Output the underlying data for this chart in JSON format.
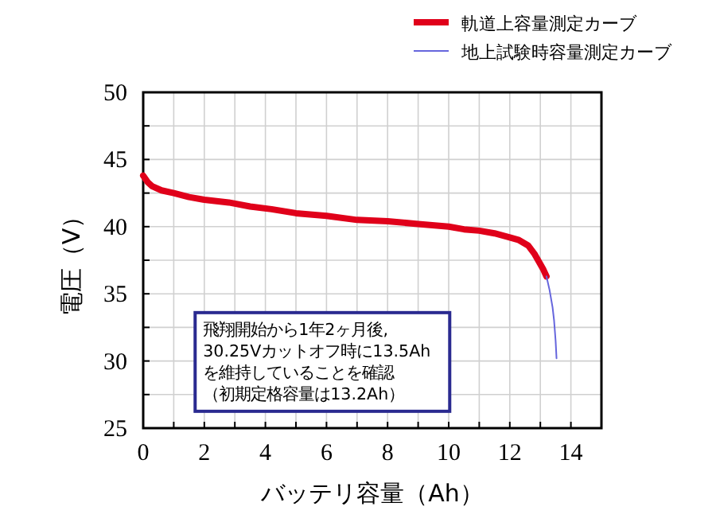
{
  "chart_data": {
    "type": "line",
    "xlabel": "バッテリ容量（Ah）",
    "ylabel": "電圧（V）",
    "xlim": [
      0,
      15
    ],
    "ylim": [
      25,
      50
    ],
    "xticks": [
      0,
      {
        "value": 1,
        "label": null
      },
      2,
      {
        "value": 3,
        "label": null
      },
      4,
      {
        "value": 5,
        "label": null
      },
      6,
      {
        "value": 7,
        "label": null
      },
      8,
      {
        "value": 9,
        "label": null
      },
      10,
      {
        "value": 11,
        "label": null
      },
      12,
      {
        "value": 13,
        "label": null
      },
      14,
      {
        "value": 15,
        "label": null
      }
    ],
    "yticks": [
      25,
      {
        "value": 27.5,
        "label": null
      },
      30,
      {
        "value": 32.5,
        "label": null
      },
      35,
      {
        "value": 37.5,
        "label": null
      },
      40,
      {
        "value": 42.5,
        "label": null
      },
      45,
      {
        "value": 47.5,
        "label": null
      },
      50
    ],
    "grid": true,
    "legend": "top right",
    "line_style": "solid",
    "series": [
      {
        "name": "軌道上容量測定カーブ",
        "color": "#e0001a",
        "x": [
          0,
          0.15,
          0.3,
          0.6,
          1,
          1.5,
          2,
          2.8,
          3.5,
          4.2,
          5,
          6,
          7,
          8,
          9,
          10,
          10.5,
          11,
          11.5,
          12,
          12.3,
          12.6,
          12.8,
          13,
          13.1,
          13.2
        ],
        "values": [
          43.8,
          43.3,
          43,
          42.7,
          42.5,
          42.2,
          42,
          41.8,
          41.5,
          41.3,
          41,
          40.8,
          40.5,
          40.4,
          40.2,
          40,
          39.8,
          39.7,
          39.5,
          39.2,
          39,
          38.6,
          38,
          37.2,
          36.8,
          36.3
        ]
      },
      {
        "name": "地上試験時容量測定カーブ",
        "color": "#6666dd",
        "x": [
          13.2,
          13.3,
          13.4,
          13.45,
          13.5,
          13.53
        ],
        "values": [
          36.3,
          35.3,
          34,
          33,
          31.5,
          30.2
        ]
      }
    ],
    "annotations": [
      "飛翔開始から1年2ヶ月後,",
      "30.25Vカットオフ時に13.5Ah",
      "を維持していることを確認",
      "（初期定格容量は13.2Ah）"
    ]
  }
}
